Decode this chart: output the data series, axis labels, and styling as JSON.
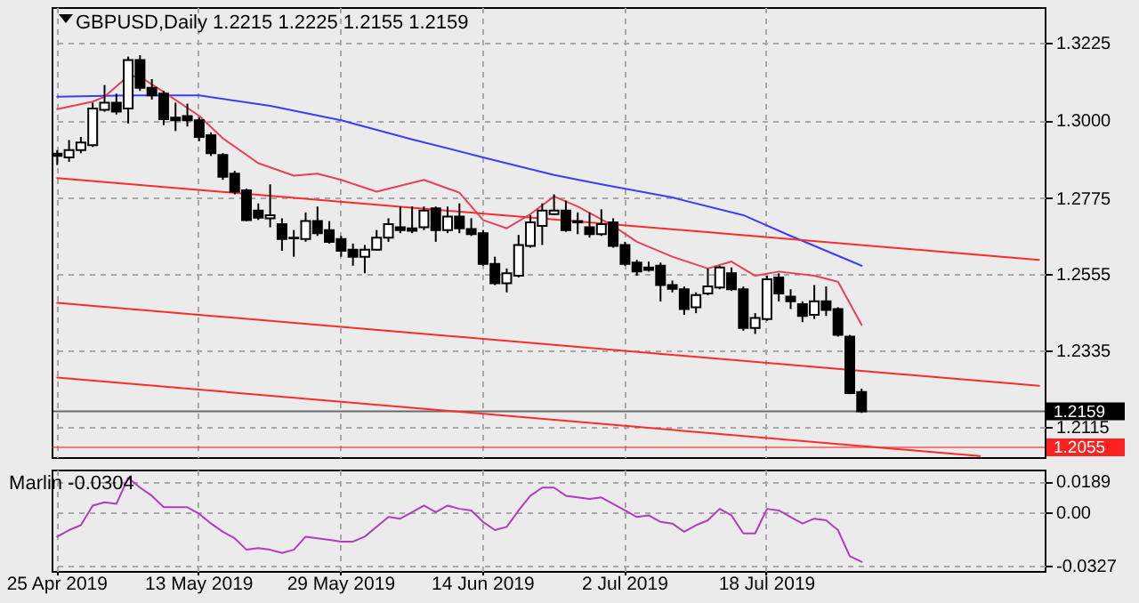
{
  "chart_data": [
    {
      "type": "candlestick",
      "title": "GBPUSD,Daily  1.2215 1.2225 1.2155 1.2159",
      "categories": [
        null,
        null,
        null,
        null,
        null,
        null,
        null,
        null,
        null,
        null,
        null,
        null,
        null,
        null,
        null,
        null,
        null,
        null,
        null,
        null,
        null,
        null,
        null,
        null,
        null,
        null,
        null,
        null,
        null,
        null,
        null,
        null,
        null,
        null,
        null,
        null,
        null,
        null,
        null,
        null,
        null,
        null,
        null,
        null,
        null,
        null,
        null,
        null,
        null,
        null,
        null,
        null,
        null,
        null,
        null,
        null,
        null,
        null,
        null,
        null,
        null,
        null,
        null,
        null,
        null,
        null,
        null,
        null,
        null,
        null,
        null,
        null,
        null,
        null,
        null,
        null,
        null,
        null,
        null,
        null,
        null,
        null,
        null,
        null
      ],
      "ohlc": [
        [
          1.2904,
          1.2914,
          1.2871,
          1.2897
        ],
        [
          1.2893,
          1.2943,
          1.288,
          1.2914
        ],
        [
          1.2914,
          1.2952,
          1.2905,
          1.2936
        ],
        [
          1.2928,
          1.3051,
          1.2923,
          1.3034
        ],
        [
          1.303,
          1.3102,
          1.3025,
          1.3051
        ],
        [
          1.3051,
          1.3077,
          1.3017,
          1.3025
        ],
        [
          1.3034,
          1.3184,
          1.2991,
          1.3174
        ],
        [
          1.3174,
          1.3188,
          1.3085,
          1.3094
        ],
        [
          1.3094,
          1.3119,
          1.306,
          1.3072
        ],
        [
          1.3077,
          1.3085,
          1.2986,
          1.3003
        ],
        [
          1.3008,
          1.3051,
          1.2969,
          1.3
        ],
        [
          1.3012,
          1.3048,
          1.2982,
          1.3
        ],
        [
          1.3,
          1.3008,
          1.294,
          1.2952
        ],
        [
          1.2957,
          1.2965,
          1.2897,
          1.2905
        ],
        [
          1.29,
          1.2905,
          1.2828,
          1.2837
        ],
        [
          1.2846,
          1.2854,
          1.2786,
          1.2794
        ],
        [
          1.2798,
          1.2803,
          1.2709,
          1.2712
        ],
        [
          1.2739,
          1.276,
          1.2712,
          1.2719
        ],
        [
          1.2717,
          1.2815,
          1.2691,
          1.2726
        ],
        [
          1.27,
          1.2717,
          1.2623,
          1.2657
        ],
        [
          1.2661,
          1.2683,
          1.2606,
          1.2659
        ],
        [
          1.2657,
          1.2734,
          1.2649,
          1.2709
        ],
        [
          1.2709,
          1.2751,
          1.2666,
          1.2674
        ],
        [
          1.2683,
          1.2709,
          1.2644,
          1.2649
        ],
        [
          1.2657,
          1.2666,
          1.2606,
          1.2623
        ],
        [
          1.2626,
          1.2644,
          1.258,
          1.2606
        ],
        [
          1.2606,
          1.264,
          1.2558,
          1.2626
        ],
        [
          1.2626,
          1.2683,
          1.2623,
          1.2661
        ],
        [
          1.2661,
          1.2717,
          1.2649,
          1.27
        ],
        [
          1.2691,
          1.2751,
          1.2674,
          1.2683
        ],
        [
          1.2688,
          1.2751,
          1.2674,
          1.2681
        ],
        [
          1.2691,
          1.2751,
          1.2683,
          1.2739
        ],
        [
          1.2746,
          1.2751,
          1.2649,
          1.2683
        ],
        [
          1.2683,
          1.2751,
          1.2674,
          1.2722
        ],
        [
          1.2722,
          1.276,
          1.2674,
          1.2688
        ],
        [
          1.2686,
          1.2717,
          1.2666,
          1.2671
        ],
        [
          1.2674,
          1.2683,
          1.258,
          1.2585
        ],
        [
          1.2585,
          1.2606,
          1.2524,
          1.2529
        ],
        [
          1.2529,
          1.2572,
          1.2503,
          1.2558
        ],
        [
          1.2551,
          1.2669,
          1.2546,
          1.264
        ],
        [
          1.2637,
          1.2726,
          1.2632,
          1.2705
        ],
        [
          1.2695,
          1.276,
          1.264,
          1.2739
        ],
        [
          1.2729,
          1.2786,
          1.2726,
          1.2739
        ],
        [
          1.2739,
          1.2768,
          1.2678,
          1.2683
        ],
        [
          1.2709,
          1.2734,
          1.2671,
          1.2705
        ],
        [
          1.2691,
          1.2734,
          1.2661,
          1.2671
        ],
        [
          1.2671,
          1.2743,
          1.2666,
          1.27
        ],
        [
          1.2705,
          1.2717,
          1.2632,
          1.2637
        ],
        [
          1.264,
          1.2649,
          1.258,
          1.2585
        ],
        [
          1.2589,
          1.2597,
          1.2551,
          1.2563
        ],
        [
          1.2575,
          1.2592,
          1.2563,
          1.2568
        ],
        [
          1.258,
          1.2589,
          1.2477,
          1.2524
        ],
        [
          1.2524,
          1.2537,
          1.2503,
          1.2513
        ],
        [
          1.2512,
          1.252,
          1.2438,
          1.2455
        ],
        [
          1.246,
          1.2503,
          1.2443,
          1.2495
        ],
        [
          1.25,
          1.2572,
          1.2495,
          1.252
        ],
        [
          1.2517,
          1.258,
          1.2512,
          1.2575
        ],
        [
          1.2558,
          1.2575,
          1.2507,
          1.2512
        ],
        [
          1.2512,
          1.252,
          1.2392,
          1.24
        ],
        [
          1.24,
          1.2443,
          1.2383,
          1.2429
        ],
        [
          1.2426,
          1.2551,
          1.2421,
          1.2541
        ],
        [
          1.2546,
          1.2558,
          1.2477,
          1.25
        ],
        [
          1.2491,
          1.2512,
          1.2455,
          1.2477
        ],
        [
          1.2469,
          1.2477,
          1.2417,
          1.2435
        ],
        [
          1.2438,
          1.2524,
          1.2426,
          1.2477
        ],
        [
          1.2477,
          1.252,
          1.2435,
          1.2452
        ],
        [
          1.2455,
          1.246,
          1.2375,
          1.238
        ],
        [
          1.2375,
          1.238,
          1.2209,
          1.2212
        ],
        [
          1.2215,
          1.2225,
          1.2155,
          1.2159
        ],
        null,
        null,
        null,
        null,
        null,
        null,
        null,
        null,
        null,
        null,
        null,
        null,
        null,
        null,
        null
      ],
      "series": [
        {
          "type": "line",
          "color": "#3c3cff",
          "values": [
            1.3068,
            null,
            null,
            null,
            null,
            null,
            1.3072,
            null,
            null,
            null,
            null,
            null,
            1.3072,
            null,
            null,
            null,
            null,
            null,
            1.3042,
            null,
            null,
            null,
            null,
            null,
            1.3,
            null,
            null,
            null,
            null,
            null,
            1.2945,
            null,
            null,
            null,
            null,
            null,
            1.2893,
            null,
            null,
            null,
            null,
            null,
            1.2842,
            null,
            null,
            null,
            1.2815,
            null,
            null,
            null,
            null,
            null,
            1.2777,
            null,
            null,
            null,
            null,
            null,
            1.2726,
            null,
            null,
            null,
            1.2666,
            null,
            null,
            null,
            null,
            null,
            1.258,
            null,
            null,
            null,
            null,
            null,
            null,
            null,
            null,
            null,
            null,
            null,
            null,
            null,
            null,
            null
          ]
        },
        {
          "type": "line",
          "color": "#e6405a",
          "values": [
            1.3032,
            null,
            null,
            1.3054,
            1.3068,
            null,
            1.3128,
            1.3126,
            null,
            1.3082,
            null,
            null,
            1.3013,
            null,
            1.2948,
            null,
            null,
            1.2876,
            null,
            null,
            1.284,
            null,
            1.2846,
            null,
            1.2828,
            null,
            null,
            1.2794,
            null,
            null,
            null,
            1.2828,
            null,
            null,
            1.2791,
            null,
            1.2712,
            null,
            1.2688,
            null,
            1.2729,
            null,
            1.278,
            null,
            1.2751,
            null,
            null,
            1.2695,
            null,
            1.2649,
            null,
            null,
            1.2606,
            null,
            null,
            1.2572,
            null,
            1.2592,
            null,
            1.2551,
            null,
            1.2563,
            null,
            null,
            1.2551,
            null,
            1.2534,
            null,
            1.2409,
            null,
            null,
            null,
            null,
            null,
            null,
            null,
            null,
            null,
            null,
            null,
            null,
            null,
            null,
            null
          ]
        },
        {
          "type": "line",
          "color": "#ff2b2b",
          "values": [
            1.2833,
            null,
            null,
            null,
            null,
            null,
            null,
            null,
            null,
            null,
            null,
            null,
            null,
            null,
            null,
            null,
            null,
            null,
            null,
            null,
            null,
            null,
            null,
            null,
            null,
            null,
            null,
            null,
            null,
            null,
            null,
            null,
            null,
            null,
            null,
            null,
            null,
            null,
            null,
            null,
            null,
            null,
            null,
            null,
            null,
            null,
            null,
            null,
            null,
            null,
            null,
            null,
            null,
            null,
            null,
            null,
            null,
            null,
            null,
            null,
            null,
            null,
            null,
            null,
            null,
            null,
            null,
            null,
            null,
            null,
            null,
            null,
            null,
            null,
            null,
            null,
            null,
            null,
            null,
            null,
            null,
            null,
            null,
            1.2597
          ]
        },
        {
          "type": "line",
          "color": "#ff2b2b",
          "values": [
            1.2473,
            null,
            null,
            null,
            null,
            null,
            null,
            null,
            null,
            null,
            null,
            null,
            null,
            null,
            null,
            null,
            null,
            null,
            null,
            null,
            null,
            null,
            null,
            null,
            null,
            null,
            null,
            null,
            null,
            null,
            null,
            null,
            null,
            null,
            null,
            null,
            null,
            null,
            null,
            null,
            null,
            null,
            null,
            null,
            null,
            null,
            null,
            null,
            null,
            null,
            null,
            null,
            null,
            null,
            null,
            null,
            null,
            null,
            null,
            null,
            null,
            null,
            null,
            null,
            null,
            null,
            null,
            null,
            null,
            null,
            null,
            null,
            null,
            null,
            null,
            null,
            null,
            null,
            null,
            null,
            null,
            null,
            null,
            1.2233
          ]
        },
        {
          "type": "line",
          "color": "#ff2b2b",
          "values": [
            1.2257,
            null,
            null,
            null,
            null,
            null,
            null,
            null,
            null,
            null,
            null,
            null,
            null,
            null,
            null,
            null,
            null,
            null,
            null,
            null,
            null,
            null,
            null,
            null,
            null,
            null,
            null,
            null,
            null,
            null,
            null,
            null,
            null,
            null,
            null,
            null,
            null,
            null,
            null,
            null,
            null,
            null,
            null,
            null,
            null,
            null,
            null,
            null,
            null,
            null,
            null,
            null,
            null,
            null,
            null,
            null,
            null,
            null,
            null,
            null,
            null,
            null,
            null,
            null,
            null,
            null,
            null,
            null,
            null,
            null,
            null,
            null,
            null,
            null,
            null,
            null,
            null,
            null,
            1.203,
            null,
            null,
            null,
            null,
            null
          ]
        }
      ],
      "ylim": [
        1.2027,
        1.3327
      ],
      "yticks": [
        1.3225,
        {
          "value": 1.3,
          "label": "1.3000"
        },
        1.2775,
        1.2555,
        1.2335,
        1.2115
      ],
      "ref_lines": [
        {
          "axis": "y",
          "value": 1.2159,
          "label": "1.2159",
          "color": "#000000"
        },
        {
          "axis": "y",
          "value": 1.2055,
          "label": "1.2055",
          "color": "#ff2020"
        }
      ],
      "grid": true,
      "tick_labels": "y"
    },
    {
      "type": "line",
      "title": "Marlin -0.0304",
      "categories": [
        "25 Apr 2019",
        null,
        null,
        null,
        null,
        null,
        null,
        null,
        null,
        null,
        null,
        null,
        "13 May 2019",
        null,
        null,
        null,
        null,
        null,
        null,
        null,
        null,
        null,
        null,
        null,
        "29 May 2019",
        null,
        null,
        null,
        null,
        null,
        null,
        null,
        null,
        null,
        null,
        null,
        "14 Jun 2019",
        null,
        null,
        null,
        null,
        null,
        null,
        null,
        null,
        null,
        null,
        null,
        "2 Jul 2019",
        null,
        null,
        null,
        null,
        null,
        null,
        null,
        null,
        null,
        null,
        null,
        "18 Jul 2019",
        null,
        null,
        null,
        null,
        null,
        null,
        null,
        null,
        null,
        null,
        null,
        null,
        null,
        null,
        null,
        null,
        null,
        null,
        null,
        null,
        null,
        null,
        null
      ],
      "series": [
        {
          "color": "#b03cc0",
          "values": [
            -0.015,
            -0.011,
            -0.008,
            0.004,
            0.006,
            0.005,
            0.021,
            0.015,
            0.01,
            0.003,
            0.003,
            0.003,
            -0.001,
            -0.007,
            -0.012,
            -0.016,
            -0.023,
            -0.022,
            -0.023,
            -0.025,
            -0.023,
            -0.015,
            -0.016,
            -0.017,
            -0.018,
            -0.018,
            -0.015,
            -0.009,
            -0.003,
            -0.004,
            0.0,
            0.004,
            0.0,
            0.004,
            0.002,
            0.001,
            -0.006,
            -0.011,
            -0.009,
            0.001,
            0.01,
            0.015,
            0.015,
            0.01,
            0.009,
            0.008,
            0.009,
            0.005,
            0.001,
            -0.003,
            -0.002,
            -0.006,
            -0.007,
            -0.012,
            -0.008,
            -0.005,
            0.002,
            -0.002,
            -0.013,
            -0.013,
            0.002,
            0.001,
            -0.003,
            -0.007,
            -0.004,
            -0.005,
            -0.011,
            -0.027,
            -0.0304,
            null,
            null,
            null,
            null,
            null,
            null,
            null,
            null,
            null,
            null,
            null,
            null,
            null,
            null,
            null
          ]
        }
      ],
      "ylim": [
        -0.036,
        0.026
      ],
      "yticks": [
        0.0189,
        {
          "value": 0,
          "label": "0.00"
        },
        -0.0327
      ],
      "grid": true
    }
  ]
}
